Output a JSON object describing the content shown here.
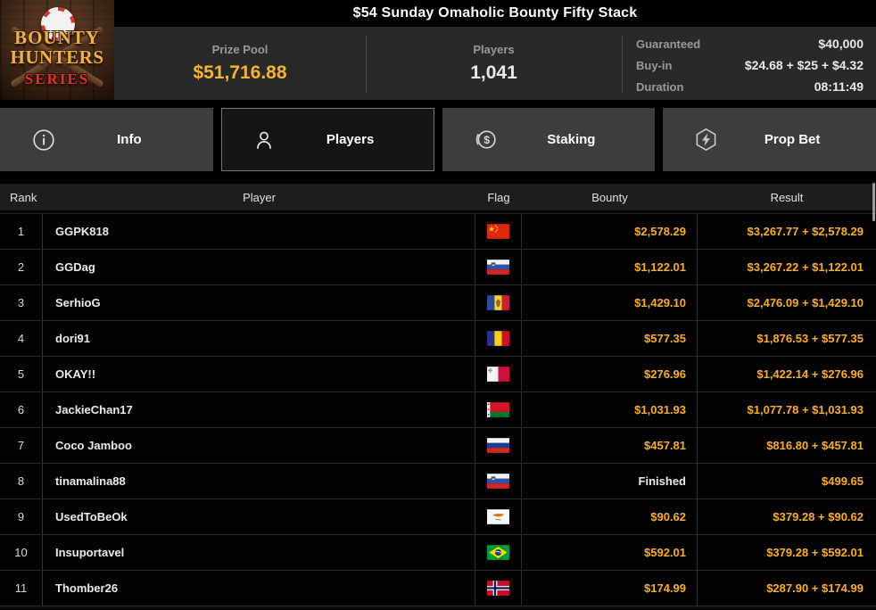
{
  "window": {
    "title": "$54 Sunday Omaholic Bounty Fifty Stack"
  },
  "logo": {
    "line1": "BOUNTY",
    "line2": "HUNTERS",
    "line3": "SERIES"
  },
  "stats": {
    "prize_pool": {
      "label": "Prize Pool",
      "value": "$51,716.88"
    },
    "players": {
      "label": "Players",
      "value": "1,041"
    },
    "details": [
      {
        "label": "Guaranteed",
        "value": "$40,000"
      },
      {
        "label": "Buy-in",
        "value": "$24.68 + $25 + $4.32"
      },
      {
        "label": "Duration",
        "value": "08:11:49"
      }
    ]
  },
  "tabs": [
    {
      "label": "Info",
      "icon": "info-icon",
      "selected": false
    },
    {
      "label": "Players",
      "icon": "players-icon",
      "selected": true
    },
    {
      "label": "Staking",
      "icon": "staking-icon",
      "selected": false
    },
    {
      "label": "Prop Bet",
      "icon": "prop-bet-icon",
      "selected": false
    }
  ],
  "table": {
    "columns": [
      "Rank",
      "Player",
      "Flag",
      "Bounty",
      "Result"
    ],
    "rows": [
      {
        "rank": "1",
        "player": "GGPK818",
        "flag": "cn",
        "bounty": "$2,578.29",
        "finished": false,
        "result": "$3,267.77 + $2,578.29"
      },
      {
        "rank": "2",
        "player": "GGDag",
        "flag": "si",
        "bounty": "$1,122.01",
        "finished": false,
        "result": "$3,267.22 + $1,122.01"
      },
      {
        "rank": "3",
        "player": "SerhioG",
        "flag": "md",
        "bounty": "$1,429.10",
        "finished": false,
        "result": "$2,476.09 + $1,429.10"
      },
      {
        "rank": "4",
        "player": "dori91",
        "flag": "ro",
        "bounty": "$577.35",
        "finished": false,
        "result": "$1,876.53 + $577.35"
      },
      {
        "rank": "5",
        "player": "OKAY!!",
        "flag": "mt",
        "bounty": "$276.96",
        "finished": false,
        "result": "$1,422.14 + $276.96"
      },
      {
        "rank": "6",
        "player": "JackieChan17",
        "flag": "by",
        "bounty": "$1,031.93",
        "finished": false,
        "result": "$1,077.78 + $1,031.93"
      },
      {
        "rank": "7",
        "player": "Coco Jamboo",
        "flag": "ru",
        "bounty": "$457.81",
        "finished": false,
        "result": "$816.80 + $457.81"
      },
      {
        "rank": "8",
        "player": "tinamalina88",
        "flag": "si",
        "bounty": "Finished",
        "finished": true,
        "result": "$499.65"
      },
      {
        "rank": "9",
        "player": "UsedToBeOk",
        "flag": "cy",
        "bounty": "$90.62",
        "finished": false,
        "result": "$379.28 + $90.62"
      },
      {
        "rank": "10",
        "player": "Insuportavel",
        "flag": "br",
        "bounty": "$592.01",
        "finished": false,
        "result": "$379.28 + $592.01"
      },
      {
        "rank": "11",
        "player": "Thomber26",
        "flag": "no",
        "bounty": "$174.99",
        "finished": false,
        "result": "$287.90 + $174.99"
      }
    ]
  },
  "colors": {
    "accent_gold": "#fbae1c",
    "stat_gold": "#f6b42c",
    "series_red": "#d53732",
    "logo_gold": "#eeb13f"
  }
}
